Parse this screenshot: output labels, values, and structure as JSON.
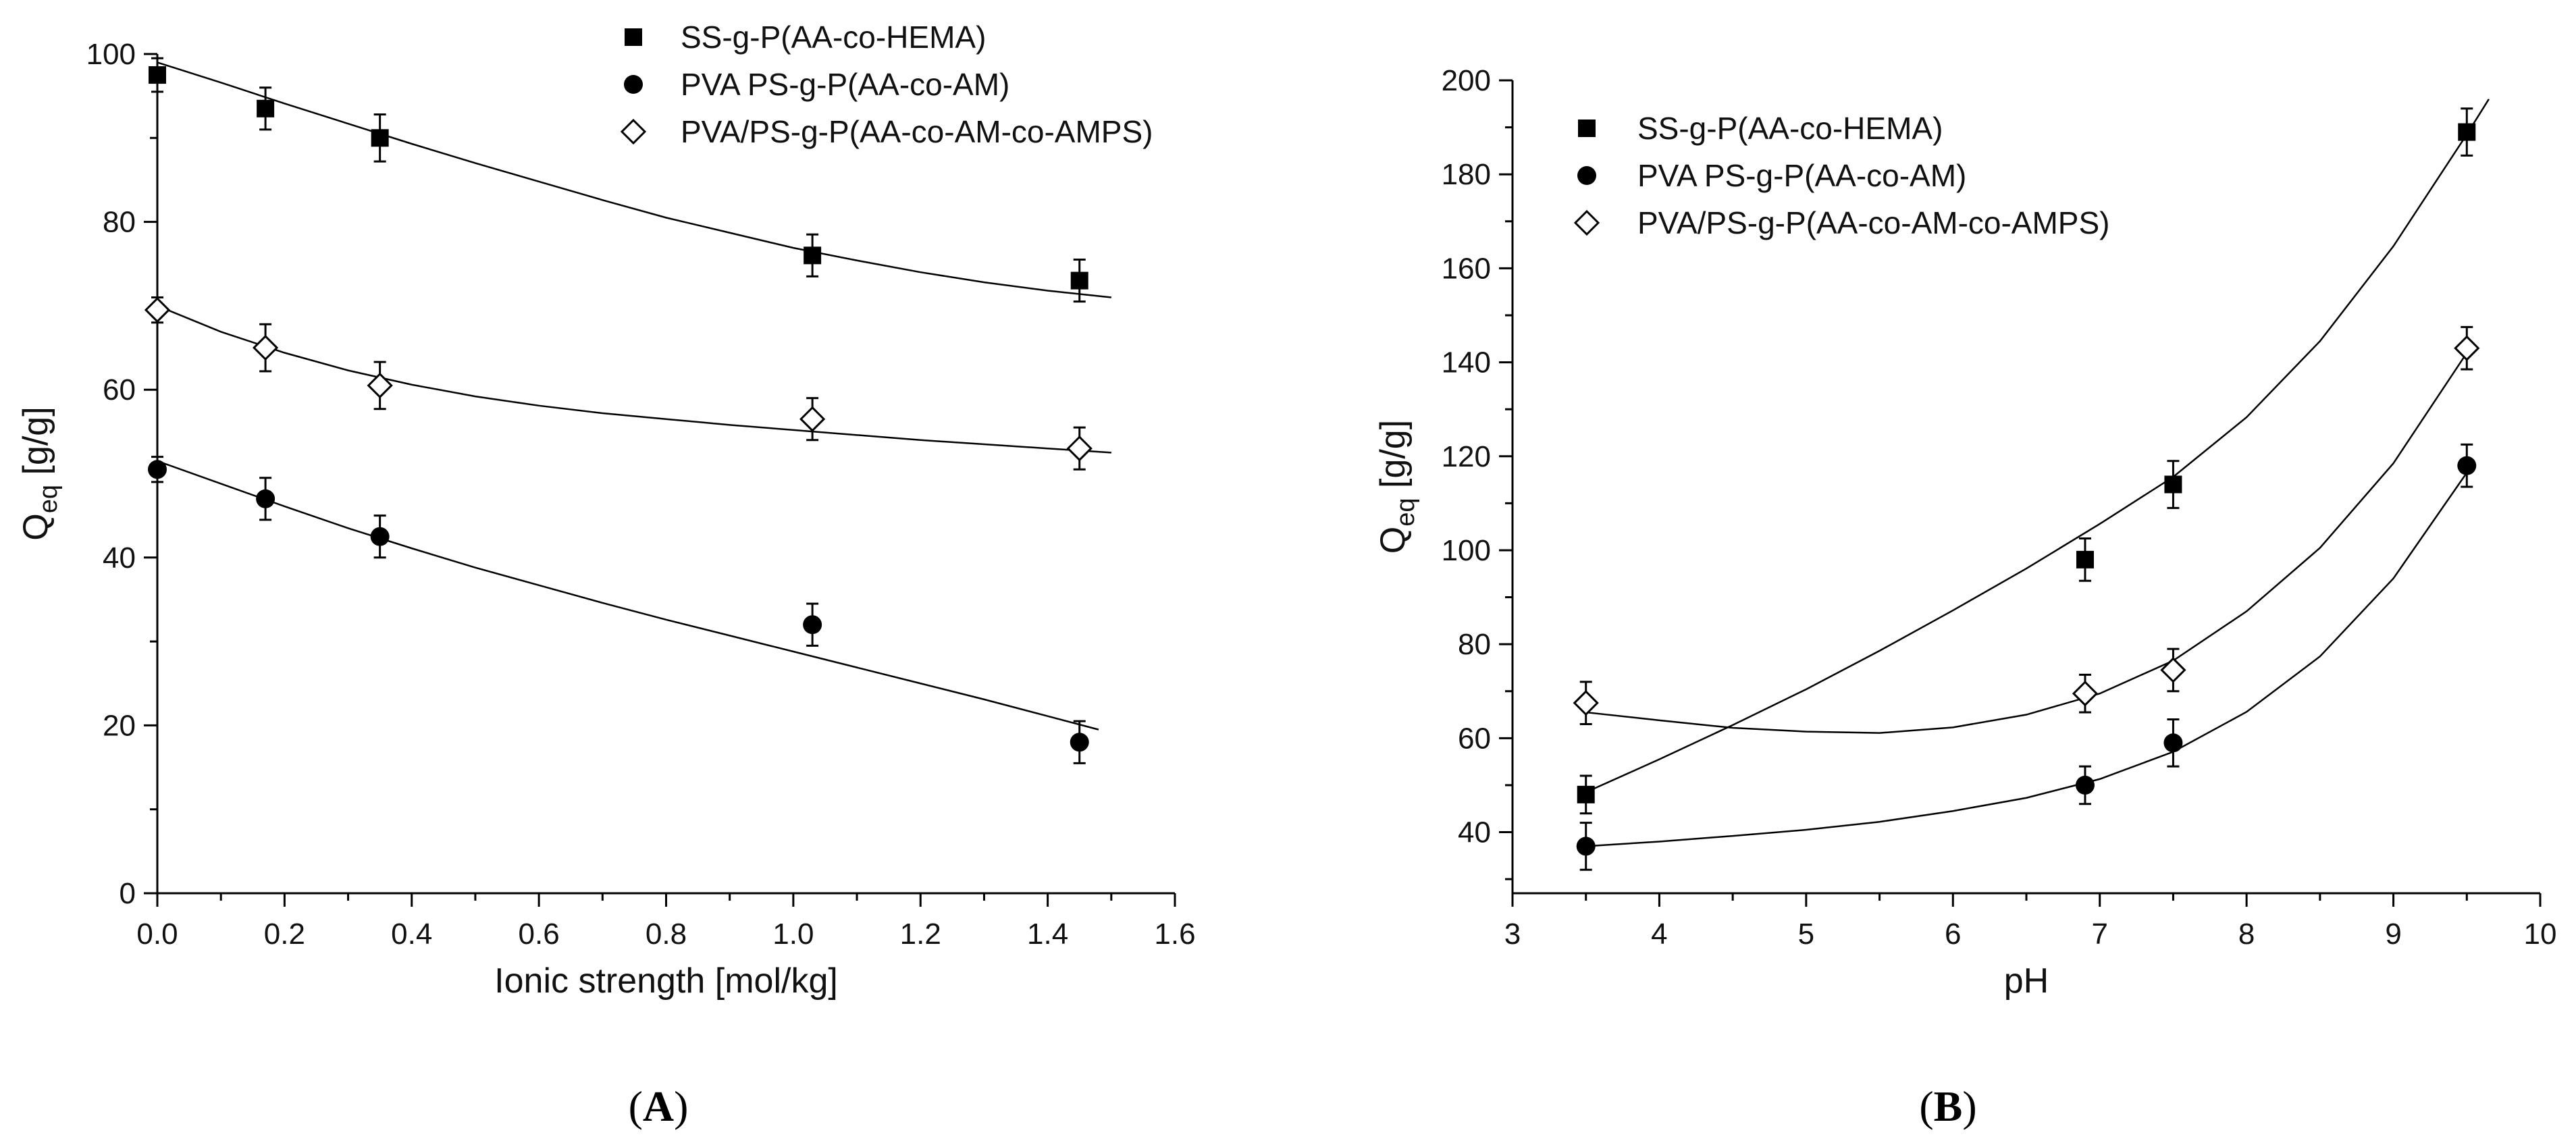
{
  "chart_data": [
    {
      "type": "scatter",
      "panel_label": "A",
      "xlabel": "Ionic strength [mol/kg]",
      "ylabel": "Q",
      "ylabel_sub": "eq",
      "ylabel_units": "[g/g]",
      "xlim": [
        0,
        1.6
      ],
      "ylim": [
        0,
        100
      ],
      "xticks": [
        "0.0",
        "0.2",
        "0.4",
        "0.6",
        "0.8",
        "1.0",
        "1.2",
        "1.4",
        "1.6"
      ],
      "yticks": [
        "0",
        "20",
        "40",
        "60",
        "80",
        "100"
      ],
      "legend_position": "top-right",
      "series": [
        {
          "name": "SS-g-P(AA-co-HEMA)",
          "marker": "square",
          "x": [
            0.0,
            0.17,
            0.35,
            1.03,
            1.45
          ],
          "y": [
            97.5,
            93.5,
            90.0,
            76.0,
            73.0
          ],
          "err": [
            2.0,
            2.5,
            2.8,
            2.5,
            2.5
          ],
          "fit_x": [
            0.0,
            0.1,
            0.2,
            0.3,
            0.4,
            0.5,
            0.6,
            0.7,
            0.8,
            0.9,
            1.0,
            1.1,
            1.2,
            1.3,
            1.4,
            1.5
          ],
          "fit_y": [
            99.0,
            96.6,
            94.1,
            91.7,
            89.3,
            87.0,
            84.8,
            82.6,
            80.5,
            78.7,
            76.9,
            75.4,
            74.0,
            72.8,
            71.8,
            71.0
          ]
        },
        {
          "name": "PVA PS-g-P(AA-co-AM)",
          "marker": "circle",
          "x": [
            0.0,
            0.17,
            0.35,
            1.03,
            1.45
          ],
          "y": [
            50.5,
            47.0,
            42.5,
            32.0,
            18.0
          ],
          "err": [
            1.5,
            2.5,
            2.5,
            2.5,
            2.5
          ],
          "fit_x": [
            0.0,
            0.1,
            0.2,
            0.3,
            0.4,
            0.5,
            0.6,
            0.7,
            0.8,
            0.9,
            1.0,
            1.1,
            1.2,
            1.3,
            1.4,
            1.48
          ],
          "fit_y": [
            51.5,
            48.8,
            46.1,
            43.5,
            41.1,
            38.8,
            36.7,
            34.6,
            32.6,
            30.7,
            28.8,
            26.9,
            25.0,
            23.1,
            21.1,
            19.5
          ]
        },
        {
          "name": "PVA/PS-g-P(AA-co-AM-co-AMPS)",
          "marker": "diamond-open",
          "x": [
            0.0,
            0.17,
            0.35,
            1.03,
            1.45
          ],
          "y": [
            69.5,
            65.0,
            60.5,
            56.5,
            53.0
          ],
          "err": [
            1.5,
            2.8,
            2.8,
            2.5,
            2.5
          ],
          "fit_x": [
            0.0,
            0.1,
            0.2,
            0.3,
            0.4,
            0.5,
            0.6,
            0.7,
            0.8,
            0.9,
            1.0,
            1.1,
            1.2,
            1.3,
            1.4,
            1.5
          ],
          "fit_y": [
            70.0,
            66.9,
            64.4,
            62.3,
            60.6,
            59.2,
            58.1,
            57.2,
            56.5,
            55.8,
            55.2,
            54.6,
            54.0,
            53.5,
            53.0,
            52.5
          ]
        }
      ]
    },
    {
      "type": "scatter",
      "panel_label": "B",
      "xlabel": "pH",
      "ylabel": "Q",
      "ylabel_sub": "eq",
      "ylabel_units": "[g/g]",
      "xlim": [
        3,
        10
      ],
      "ylim": [
        27,
        200
      ],
      "xticks": [
        "3",
        "4",
        "5",
        "6",
        "7",
        "8",
        "9",
        "10"
      ],
      "yticks": [
        "40",
        "60",
        "80",
        "100",
        "120",
        "140",
        "160",
        "180",
        "200"
      ],
      "legend_position": "top-left",
      "series": [
        {
          "name": "SS-g-P(AA-co-HEMA)",
          "marker": "square",
          "x": [
            3.5,
            6.9,
            7.5,
            9.5
          ],
          "y": [
            48,
            98,
            114,
            189
          ],
          "err": [
            4,
            4.5,
            5,
            5
          ],
          "fit_x": [
            3.5,
            4.0,
            4.5,
            5.0,
            5.5,
            6.0,
            6.5,
            7.0,
            7.5,
            8.0,
            8.5,
            9.0,
            9.5,
            9.65
          ],
          "fit_y": [
            48.5,
            55.5,
            62.8,
            70.4,
            78.6,
            87.2,
            96.1,
            105.6,
            115.6,
            128.3,
            144.5,
            164.7,
            188.5,
            196.0
          ]
        },
        {
          "name": "PVA PS-g-P(AA-co-AM)",
          "marker": "circle",
          "x": [
            3.5,
            6.9,
            7.5,
            9.5
          ],
          "y": [
            37,
            50,
            59,
            118
          ],
          "err": [
            5,
            4,
            5,
            4.5
          ],
          "fit_x": [
            3.5,
            4.0,
            4.5,
            5.0,
            5.5,
            6.0,
            6.5,
            7.0,
            7.5,
            8.0,
            8.5,
            9.0,
            9.5
          ],
          "fit_y": [
            37.0,
            38.0,
            39.2,
            40.5,
            42.2,
            44.5,
            47.3,
            51.3,
            57.1,
            65.6,
            77.4,
            94.0,
            116.5
          ]
        },
        {
          "name": "PVA/PS-g-P(AA-co-AM-co-AMPS)",
          "marker": "diamond-open",
          "x": [
            3.5,
            6.9,
            7.5,
            9.5
          ],
          "y": [
            67.5,
            69.5,
            74.5,
            143
          ],
          "err": [
            4.5,
            4,
            4.5,
            4.5
          ],
          "fit_x": [
            3.5,
            4.0,
            4.5,
            5.0,
            5.5,
            6.0,
            6.5,
            7.0,
            7.5,
            8.0,
            8.5,
            9.0,
            9.5
          ],
          "fit_y": [
            65.5,
            63.8,
            62.2,
            61.4,
            61.1,
            62.3,
            65.0,
            69.5,
            76.5,
            87.0,
            100.5,
            118.5,
            142.0
          ]
        }
      ]
    }
  ]
}
